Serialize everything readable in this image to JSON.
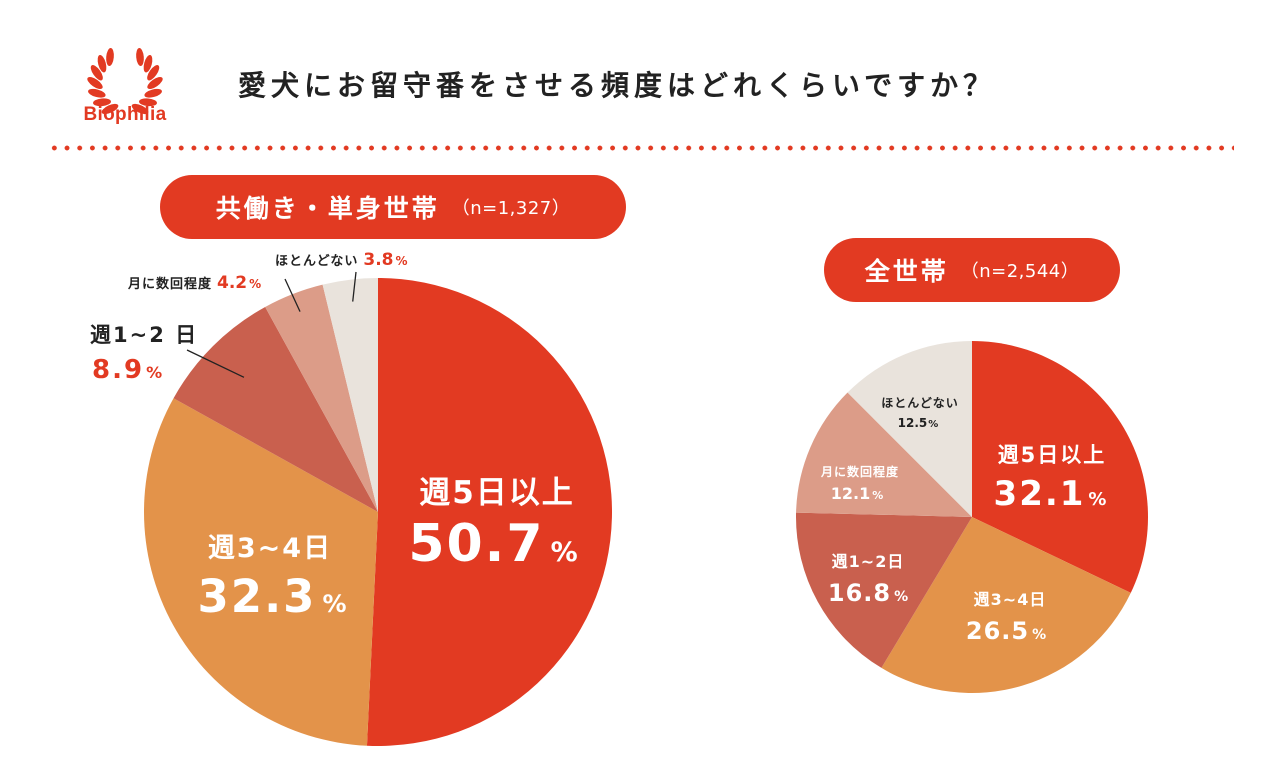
{
  "brand": {
    "name": "Biophilia"
  },
  "title": "愛犬にお留守番をさせる頻度はどれくらいですか？",
  "colors": {
    "accent": "#e23a22",
    "s1": "#e23a22",
    "s2": "#e3934a",
    "s3": "#c9604e",
    "s4": "#dc9c88",
    "s5": "#e9e3dc"
  },
  "chart_data": [
    {
      "type": "pie",
      "title": "共働き・単身世帯",
      "sample": "（n=1,327）",
      "slices": [
        {
          "label": "週5日以上",
          "value": 50.7,
          "display": "50.7"
        },
        {
          "label": "週3~4日",
          "value": 32.3,
          "display": "32.3"
        },
        {
          "label": "週1~2 日",
          "value": 8.9,
          "display": "8.9"
        },
        {
          "label": "月に数回程度",
          "value": 4.2,
          "display": "4.2"
        },
        {
          "label": "ほとんどない",
          "value": 3.8,
          "display": "3.8"
        }
      ],
      "unit": "%"
    },
    {
      "type": "pie",
      "title": "全世帯",
      "sample": "（n=2,544）",
      "slices": [
        {
          "label": "週5日以上",
          "value": 32.1,
          "display": "32.1"
        },
        {
          "label": "週3~4日",
          "value": 26.5,
          "display": "26.5"
        },
        {
          "label": "週1~2日",
          "value": 16.8,
          "display": "16.8"
        },
        {
          "label": "月に数回程度",
          "value": 12.1,
          "display": "12.1"
        },
        {
          "label": "ほとんどない",
          "value": 12.5,
          "display": "12.5"
        }
      ],
      "unit": "%"
    }
  ]
}
